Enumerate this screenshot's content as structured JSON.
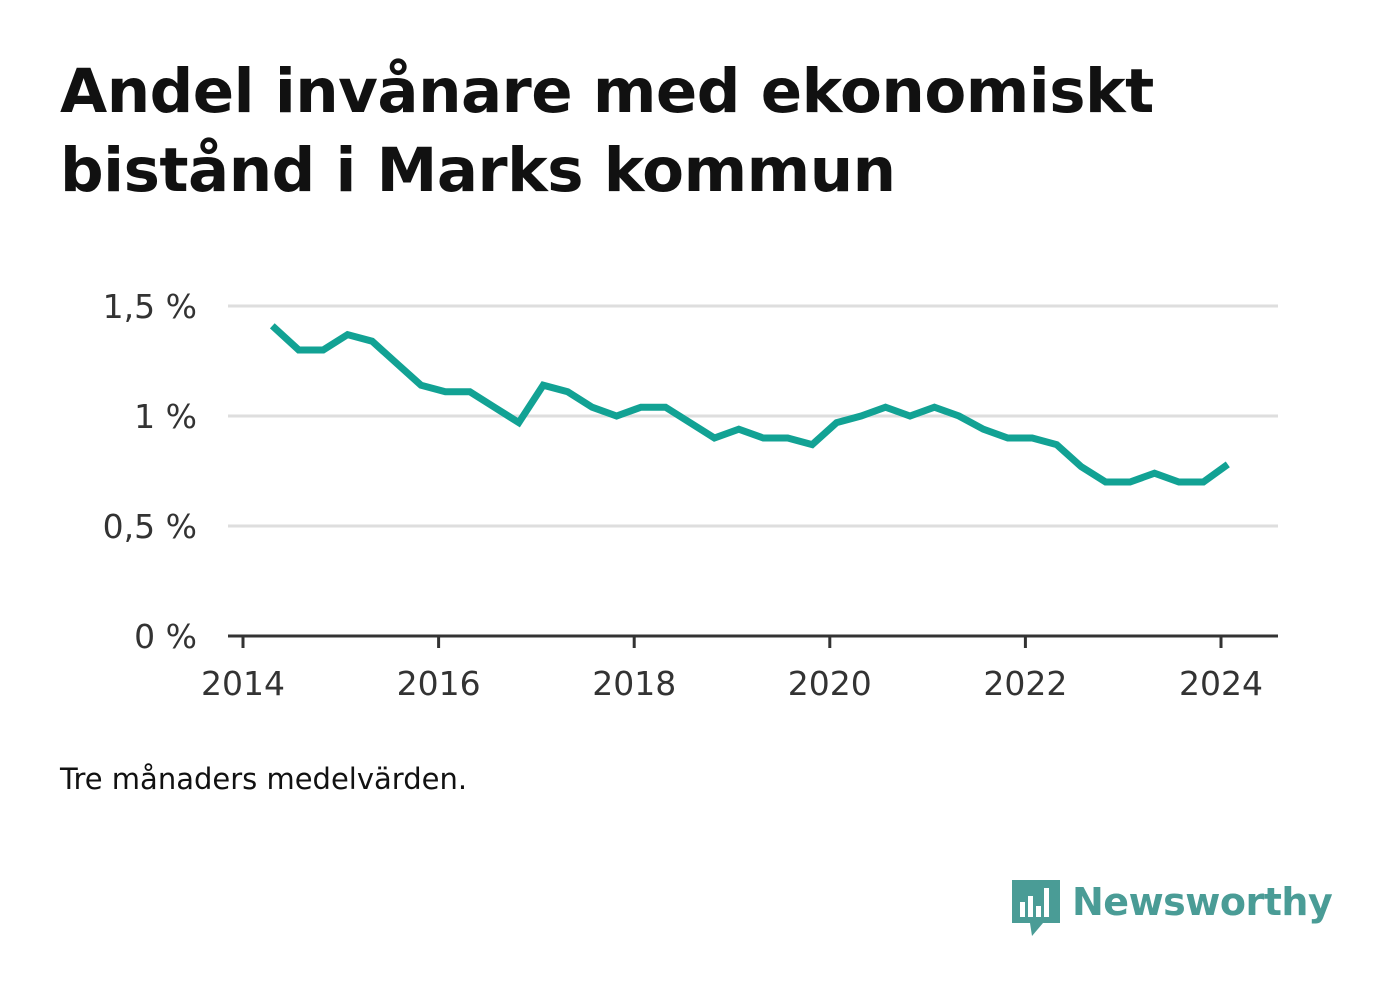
{
  "title": "Andel invånare med ekonomiskt bistånd i Marks kommun",
  "note": "Tre månaders medelvärden.",
  "brand": {
    "name": "Newsworthy",
    "icon": "bar-chart-speech-bubble-icon",
    "color": "#4a9c96"
  },
  "chart_data": {
    "type": "line",
    "title": "Andel invånare med ekonomiskt bistånd i Marks kommun",
    "xlabel": "",
    "ylabel": "",
    "xlim": [
      2014,
      2024.6
    ],
    "ylim": [
      0,
      1.5
    ],
    "x_ticks": [
      {
        "value": 2014,
        "label": "2014"
      },
      {
        "value": 2016,
        "label": "2016"
      },
      {
        "value": 2018,
        "label": "2018"
      },
      {
        "value": 2020,
        "label": "2020"
      },
      {
        "value": 2022,
        "label": "2022"
      },
      {
        "value": 2024,
        "label": "2024"
      }
    ],
    "y_ticks": [
      {
        "value": 0,
        "label": "0 %"
      },
      {
        "value": 0.5,
        "label": "0,5 %"
      },
      {
        "value": 1,
        "label": "1 %"
      },
      {
        "value": 1.5,
        "label": "1,5 %"
      }
    ],
    "grid": true,
    "legend": "none",
    "line_color": "#12a294",
    "series": [
      {
        "x": [
          2014.3,
          2014.57,
          2014.82,
          2015.07,
          2015.32,
          2015.57,
          2015.82,
          2016.07,
          2016.32,
          2016.57,
          2016.82,
          2017.07,
          2017.32,
          2017.57,
          2017.82,
          2018.07,
          2018.32,
          2018.57,
          2018.82,
          2019.07,
          2019.32,
          2019.57,
          2019.82,
          2020.07,
          2020.32,
          2020.57,
          2020.82,
          2021.07,
          2021.32,
          2021.57,
          2021.82,
          2022.07,
          2022.32,
          2022.57,
          2022.82,
          2023.07,
          2023.32,
          2023.57,
          2023.82,
          2024.07
        ],
        "y": [
          1.41,
          1.3,
          1.3,
          1.37,
          1.34,
          1.24,
          1.14,
          1.11,
          1.11,
          1.04,
          0.97,
          1.14,
          1.11,
          1.04,
          1.0,
          1.04,
          1.04,
          0.97,
          0.9,
          0.94,
          0.9,
          0.9,
          0.87,
          0.97,
          1.0,
          1.04,
          1.0,
          1.04,
          1.0,
          0.94,
          0.9,
          0.9,
          0.87,
          0.77,
          0.7,
          0.7,
          0.74,
          0.7,
          0.7,
          0.78
        ]
      }
    ]
  }
}
